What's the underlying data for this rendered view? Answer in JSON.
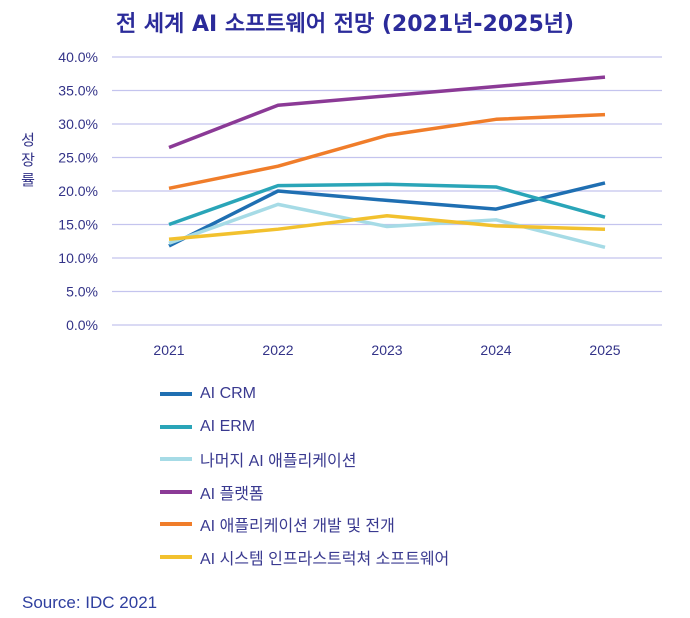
{
  "chart_data": {
    "type": "line",
    "title": "전 세계 AI 소프트웨어 전망 (2021년-2025년)",
    "ylabel": "성장률",
    "xlabel": "",
    "categories": [
      "2021",
      "2022",
      "2023",
      "2024",
      "2025"
    ],
    "ylim": [
      0,
      40
    ],
    "yticks": [
      "0.0%",
      "5.0%",
      "10.0%",
      "15.0%",
      "20.0%",
      "25.0%",
      "30.0%",
      "35.0%",
      "40.0%"
    ],
    "grid": true,
    "legend_position": "bottom",
    "series": [
      {
        "name": "AI CRM",
        "color": "#1f6fb2",
        "values": [
          11.8,
          20.0,
          18.6,
          17.3,
          21.2
        ]
      },
      {
        "name": "AI ERM",
        "color": "#2aa5b8",
        "values": [
          15.0,
          20.8,
          21.0,
          20.6,
          16.1
        ]
      },
      {
        "name": "나머지 AI 애플리케이션",
        "color": "#a6dbe6",
        "values": [
          12.2,
          18.0,
          14.7,
          15.7,
          11.6
        ]
      },
      {
        "name": "AI 플랫폼",
        "color": "#8b3a96",
        "values": [
          26.5,
          32.8,
          34.2,
          35.6,
          37.0
        ]
      },
      {
        "name": "AI 애플리케이션 개발 및 전개",
        "color": "#f07d2a",
        "values": [
          20.4,
          23.7,
          28.3,
          30.7,
          31.4
        ]
      },
      {
        "name": "AI 시스템 인프라스트럭쳐 소프트웨어",
        "color": "#f2c12e",
        "values": [
          12.8,
          14.3,
          16.3,
          14.8,
          14.3
        ]
      }
    ]
  },
  "source": "Source: IDC 2021"
}
